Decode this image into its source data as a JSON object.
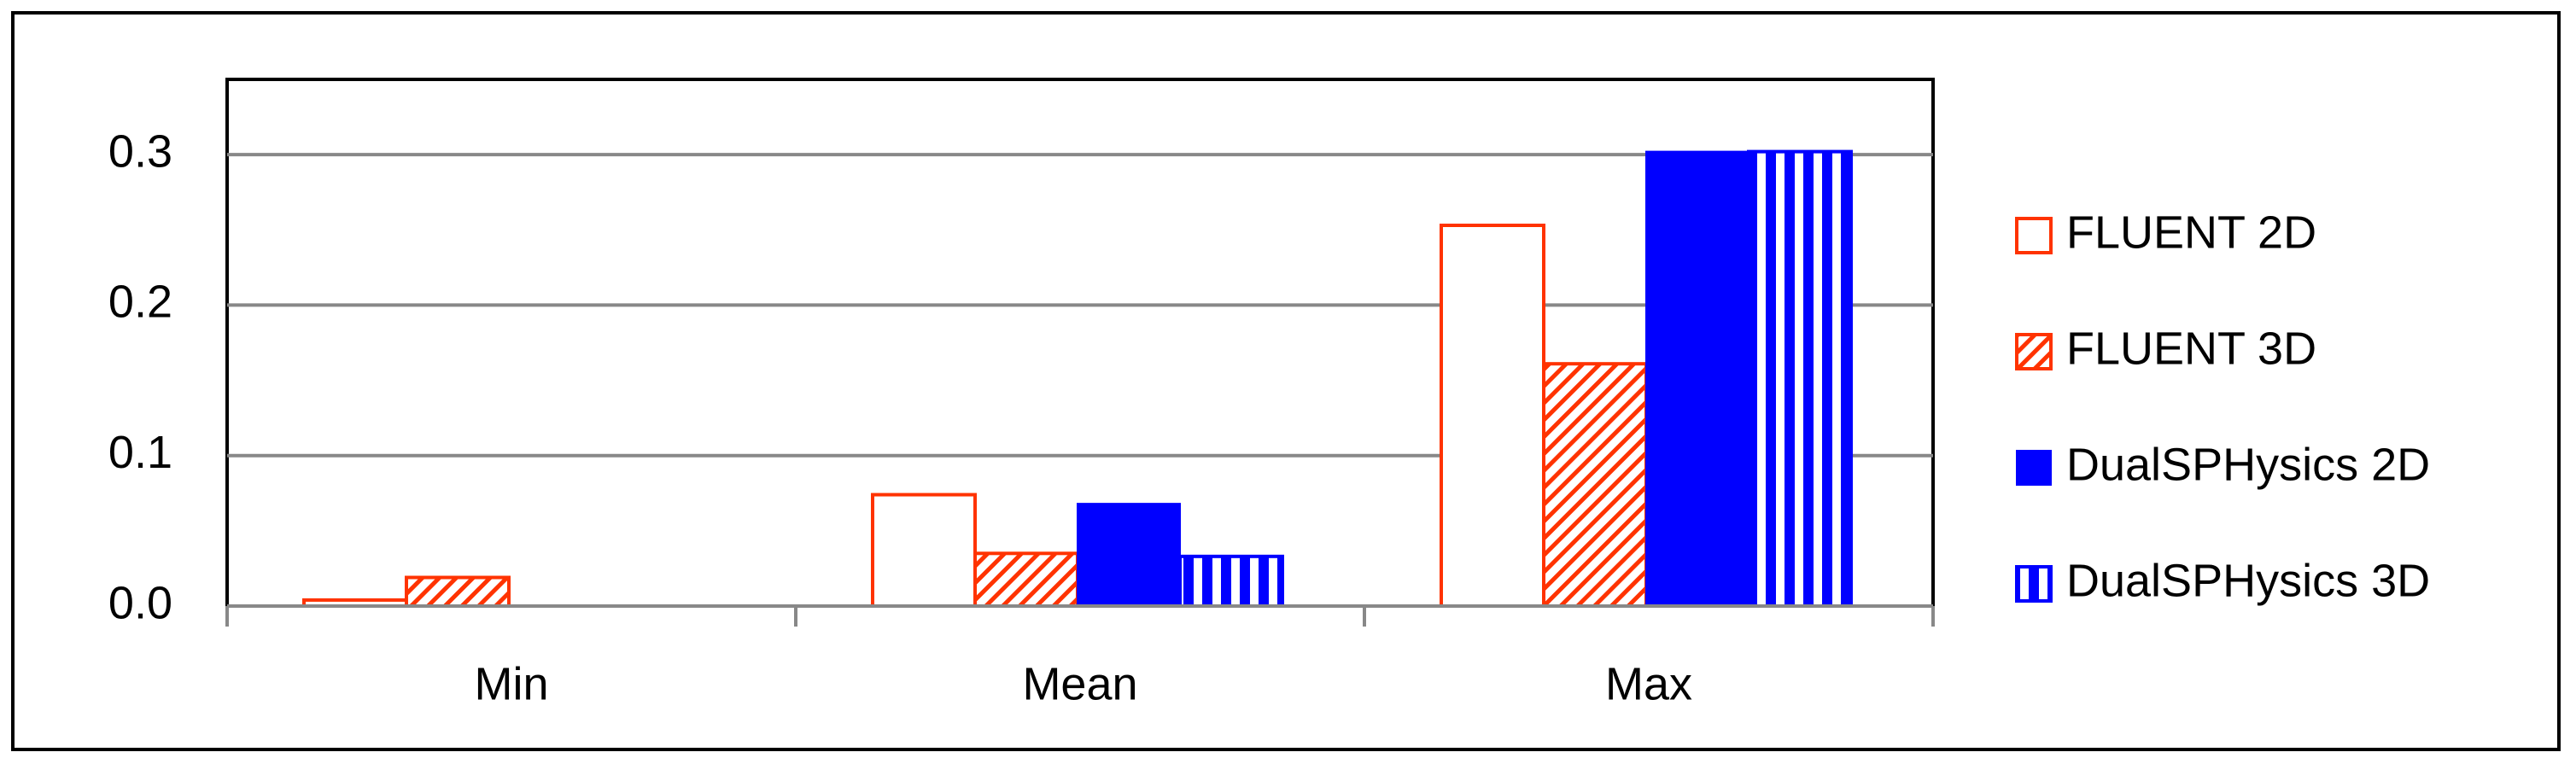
{
  "chart_data": {
    "type": "bar",
    "categories": [
      "Min",
      "Mean",
      "Max"
    ],
    "series": [
      {
        "name": "FLUENT 2D",
        "color": "#ff3300",
        "fill_style": "outline",
        "values": [
          0.004,
          0.074,
          0.253
        ]
      },
      {
        "name": "FLUENT 3D",
        "color": "#ff3300",
        "fill_style": "diagonal",
        "values": [
          0.019,
          0.035,
          0.161
        ]
      },
      {
        "name": "DualSPHysics 2D",
        "color": "#0000ff",
        "fill_style": "solid",
        "values": [
          null,
          0.068,
          0.302
        ]
      },
      {
        "name": "DualSPHysics 3D",
        "color": "#0000ff",
        "fill_style": "vertical",
        "values": [
          null,
          0.033,
          0.302
        ]
      }
    ],
    "ylim": [
      0,
      0.35
    ],
    "yticks": [
      {
        "value": 0,
        "label": "0.0"
      },
      0.1,
      0.2,
      0.3
    ],
    "grid": true,
    "legend": "right"
  }
}
